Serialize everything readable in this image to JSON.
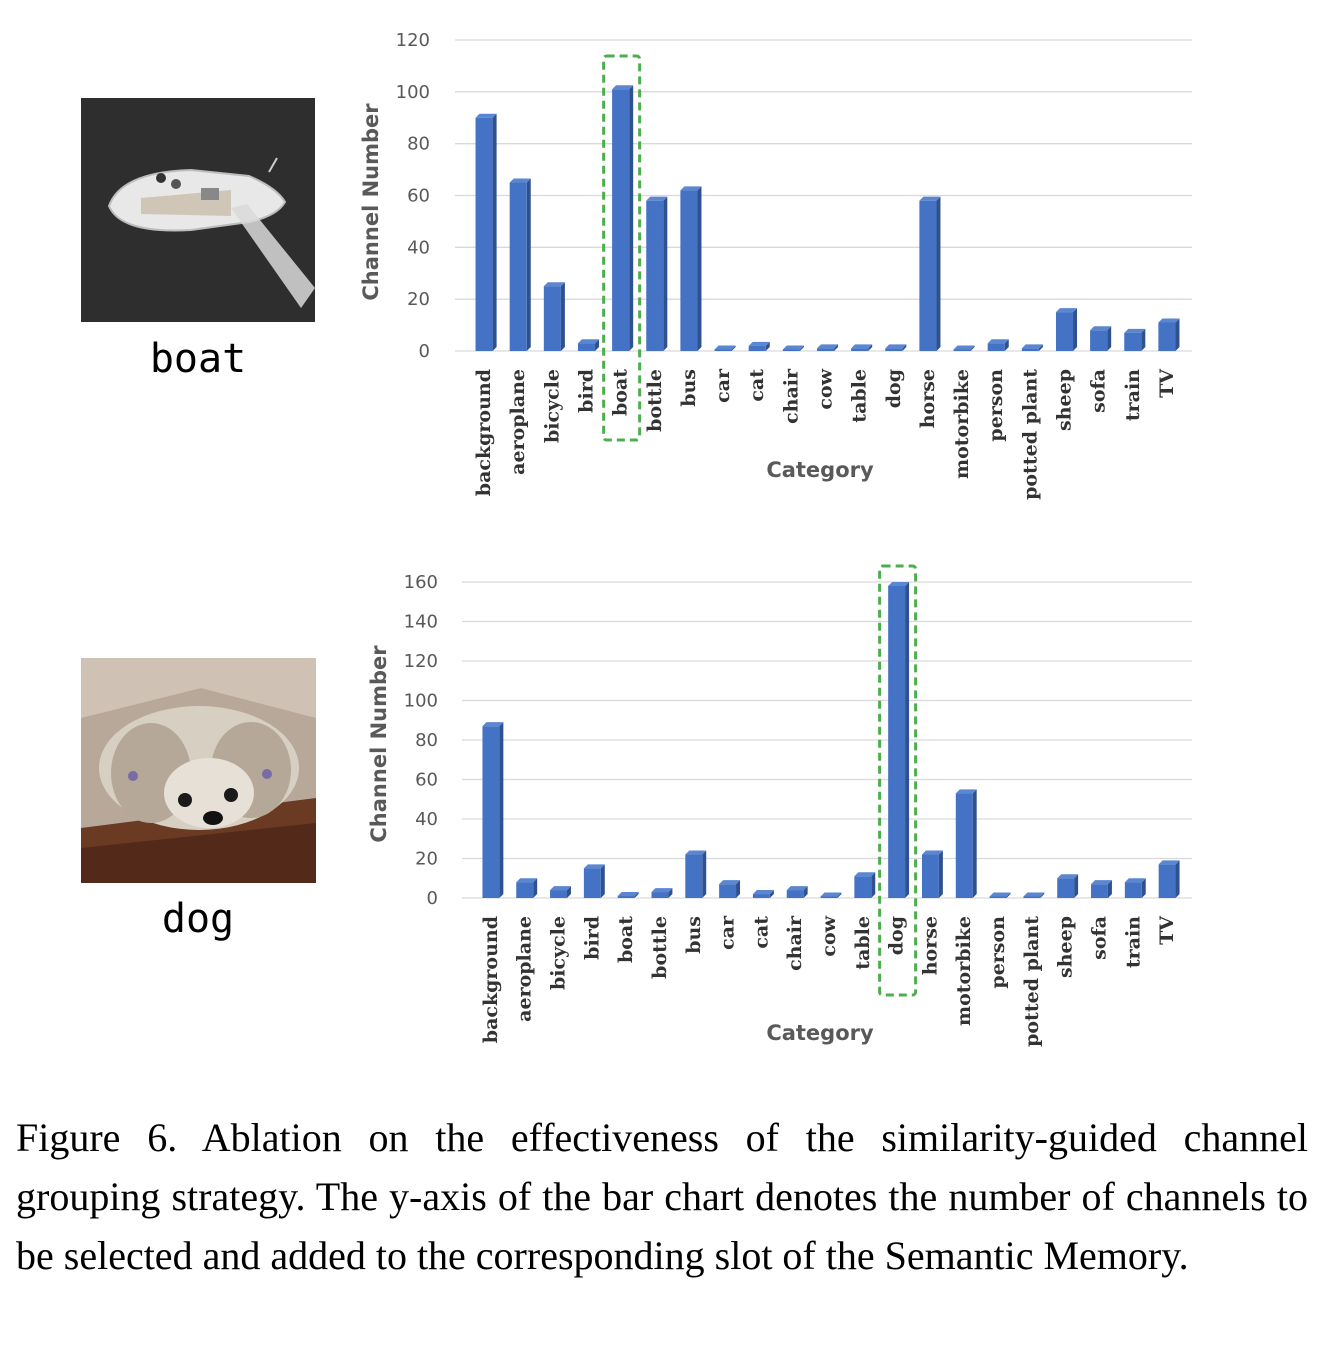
{
  "figures": [
    {
      "label": "boat",
      "image_icon": "boat-photo"
    },
    {
      "label": "dog",
      "image_icon": "dog-photo"
    }
  ],
  "chart_data": [
    {
      "type": "bar",
      "categories": [
        "background",
        "aeroplane",
        "bicycle",
        "bird",
        "boat",
        "bottle",
        "bus",
        "car",
        "cat",
        "chair",
        "cow",
        "table",
        "dog",
        "horse",
        "motorbike",
        "person",
        "potted plant",
        "sheep",
        "sofa",
        "train",
        "TV"
      ],
      "values": [
        90,
        65,
        25,
        3,
        101,
        58,
        62,
        0,
        2,
        0,
        1,
        1,
        1,
        58,
        0,
        3,
        1,
        15,
        8,
        7,
        11
      ],
      "xlabel": "Category",
      "ylabel": "Channel Number",
      "ylim": [
        0,
        120
      ],
      "yticks": [
        0,
        20,
        40,
        60,
        80,
        100,
        120
      ],
      "highlight": "boat",
      "bar_color": "#4472c4",
      "highlight_color": "#4cae4c",
      "grid": true
    },
    {
      "type": "bar",
      "categories": [
        "background",
        "aeroplane",
        "bicycle",
        "bird",
        "boat",
        "bottle",
        "bus",
        "car",
        "cat",
        "chair",
        "cow",
        "table",
        "dog",
        "horse",
        "motorbike",
        "person",
        "potted plant",
        "sheep",
        "sofa",
        "train",
        "TV"
      ],
      "values": [
        87,
        8,
        4,
        15,
        1,
        3,
        22,
        7,
        2,
        4,
        0,
        11,
        158,
        22,
        53,
        0,
        0,
        10,
        7,
        8,
        17
      ],
      "xlabel": "Category",
      "ylabel": "Channel Number",
      "ylim": [
        0,
        160
      ],
      "yticks": [
        0,
        20,
        40,
        60,
        80,
        100,
        120,
        140,
        160
      ],
      "highlight": "dog",
      "bar_color": "#4472c4",
      "highlight_color": "#4cae4c",
      "grid": true
    }
  ],
  "caption": "Figure 6.  Ablation on the effectiveness of the similarity-guided channel grouping strategy. The y-axis of the bar chart denotes the number of channels to be selected and added to the corresponding slot of the Semantic Memory."
}
